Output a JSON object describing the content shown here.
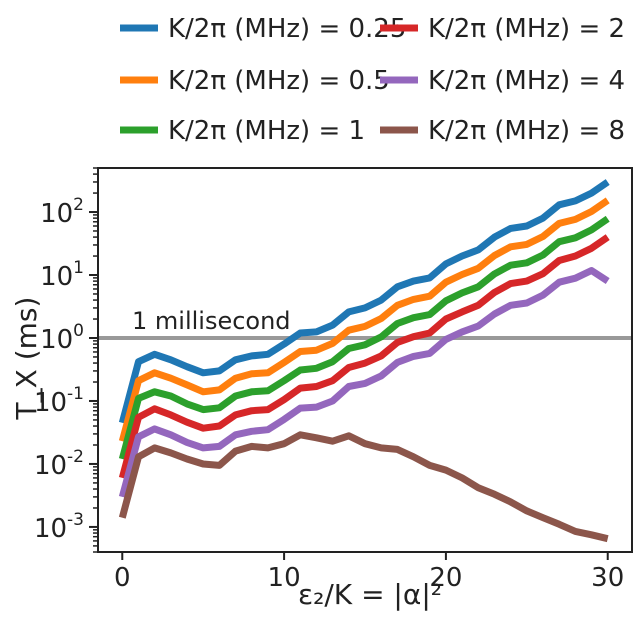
{
  "chart_data": {
    "type": "line",
    "xlabel": "ε₂/K = |α|²",
    "ylabel": "T_X (ms)",
    "y_scale": "log",
    "xlim": [
      -1.5,
      31.5
    ],
    "ylim": [
      0.0004,
      500
    ],
    "x_ticks": [
      0,
      10,
      20,
      30
    ],
    "y_ticks": [
      0.001,
      0.01,
      0.1,
      1,
      10,
      100
    ],
    "legend_placement": "top",
    "grid": false,
    "annotations": [
      {
        "text": "1 millisecond",
        "y": 1,
        "color": "#999999"
      }
    ],
    "series": [
      {
        "name": "K/2π (MHz) = 0.25",
        "color": "#1f77b4",
        "x": [
          0,
          1,
          2,
          3,
          4,
          5,
          6,
          7,
          8,
          9,
          10,
          11,
          12,
          13,
          14,
          15,
          16,
          17,
          18,
          19,
          20,
          21,
          22,
          23,
          24,
          25,
          26,
          27,
          28,
          29,
          30
        ],
        "y": [
          0.045,
          0.42,
          0.55,
          0.45,
          0.35,
          0.28,
          0.3,
          0.45,
          0.52,
          0.55,
          0.8,
          1.2,
          1.25,
          1.6,
          2.6,
          3.0,
          4.0,
          6.5,
          8.0,
          9.0,
          15.0,
          20.0,
          25.0,
          40.0,
          55.0,
          60.0,
          80.0,
          130.0,
          150.0,
          200.0,
          300.0
        ]
      },
      {
        "name": "K/2π (MHz) = 2",
        "color": "#d62728",
        "x": [
          0,
          1,
          2,
          3,
          4,
          5,
          6,
          7,
          8,
          9,
          10,
          11,
          12,
          13,
          14,
          15,
          16,
          17,
          18,
          19,
          20,
          21,
          22,
          23,
          24,
          25,
          26,
          27,
          28,
          29,
          30
        ],
        "y": [
          0.006,
          0.055,
          0.075,
          0.06,
          0.046,
          0.037,
          0.04,
          0.06,
          0.07,
          0.073,
          0.105,
          0.16,
          0.17,
          0.21,
          0.34,
          0.4,
          0.52,
          0.85,
          1.05,
          1.2,
          2.0,
          2.6,
          3.3,
          5.3,
          7.3,
          8.0,
          10.5,
          17.0,
          20.0,
          26.5,
          40.0
        ]
      },
      {
        "name": "K/2π (MHz) = 0.5",
        "color": "#ff7f0e",
        "x": [
          0,
          1,
          2,
          3,
          4,
          5,
          6,
          7,
          8,
          9,
          10,
          11,
          12,
          13,
          14,
          15,
          16,
          17,
          18,
          19,
          20,
          21,
          22,
          23,
          24,
          25,
          26,
          27,
          28,
          29,
          30
        ],
        "y": [
          0.023,
          0.21,
          0.28,
          0.23,
          0.18,
          0.14,
          0.15,
          0.23,
          0.27,
          0.28,
          0.41,
          0.61,
          0.64,
          0.82,
          1.33,
          1.53,
          2.04,
          3.3,
          4.1,
          4.6,
          7.7,
          10.2,
          12.8,
          20.4,
          28.0,
          30.6,
          40.8,
          66.0,
          76.5,
          102.0,
          153.0
        ]
      },
      {
        "name": "K/2π (MHz) = 4",
        "color": "#9467bd",
        "x": [
          0,
          1,
          2,
          3,
          4,
          5,
          6,
          7,
          8,
          9,
          10,
          11,
          12,
          13,
          14,
          15,
          16,
          17,
          18,
          19,
          20,
          21,
          22,
          23,
          24,
          25,
          26,
          27,
          28,
          29,
          30
        ],
        "y": [
          0.003,
          0.027,
          0.036,
          0.029,
          0.022,
          0.018,
          0.019,
          0.029,
          0.033,
          0.035,
          0.051,
          0.077,
          0.08,
          0.1,
          0.17,
          0.19,
          0.25,
          0.41,
          0.51,
          0.57,
          0.95,
          1.25,
          1.55,
          2.4,
          3.3,
          3.6,
          4.8,
          7.7,
          8.9,
          11.8,
          8.0
        ]
      },
      {
        "name": "K/2π (MHz) = 1",
        "color": "#2ca02c",
        "x": [
          0,
          1,
          2,
          3,
          4,
          5,
          6,
          7,
          8,
          9,
          10,
          11,
          12,
          13,
          14,
          15,
          16,
          17,
          18,
          19,
          20,
          21,
          22,
          23,
          24,
          25,
          26,
          27,
          28,
          29,
          30
        ],
        "y": [
          0.012,
          0.11,
          0.14,
          0.12,
          0.09,
          0.073,
          0.078,
          0.12,
          0.14,
          0.145,
          0.21,
          0.31,
          0.33,
          0.42,
          0.68,
          0.78,
          1.04,
          1.7,
          2.1,
          2.35,
          3.9,
          5.2,
          6.5,
          10.4,
          14.3,
          15.6,
          20.8,
          33.8,
          39.0,
          52.0,
          78.0
        ]
      },
      {
        "name": "K/2π (MHz) = 8",
        "color": "#8c564b",
        "x": [
          0,
          1,
          2,
          3,
          4,
          5,
          6,
          7,
          8,
          9,
          10,
          11,
          12,
          13,
          14,
          15,
          16,
          17,
          18,
          19,
          20,
          21,
          22,
          23,
          24,
          25,
          26,
          27,
          28,
          29,
          30
        ],
        "y": [
          0.0014,
          0.013,
          0.018,
          0.015,
          0.012,
          0.01,
          0.0095,
          0.016,
          0.019,
          0.018,
          0.021,
          0.029,
          0.026,
          0.023,
          0.028,
          0.021,
          0.018,
          0.017,
          0.013,
          0.0095,
          0.008,
          0.006,
          0.0042,
          0.0033,
          0.0025,
          0.0018,
          0.0014,
          0.0011,
          0.00085,
          0.00075,
          0.00065
        ]
      }
    ]
  }
}
